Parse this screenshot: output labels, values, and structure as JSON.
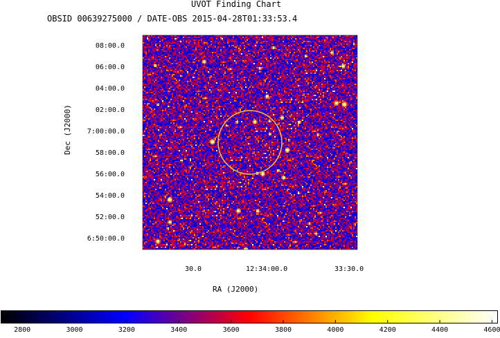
{
  "chart_data": {
    "type": "heatmap",
    "title": "UVOT Finding Chart",
    "subtitle": "OBSID 00639275000 / DATE-OBS 2015-04-28T01:33:53.4",
    "xlabel": "RA (J2000)",
    "ylabel": "Dec (J2000)",
    "x_ticks": [
      "30.0",
      "12:34:00.0",
      "33:30.0"
    ],
    "y_ticks": [
      "08:00.0",
      "06:00.0",
      "04:00.0",
      "02:00.0",
      "7:00:00.0",
      "58:00.0",
      "56:00.0",
      "54:00.0",
      "52:00.0",
      "6:50:00.0"
    ],
    "colorbar": {
      "range": [
        2720,
        4620
      ],
      "ticks": [
        2800,
        3000,
        3200,
        3400,
        3600,
        3800,
        4000,
        4200,
        4400,
        4600
      ],
      "colormap": [
        "#000000",
        "#0000ff",
        "#ff0000",
        "#ffff00",
        "#ffffff"
      ]
    },
    "source_circle_color": "#e8c84a"
  }
}
